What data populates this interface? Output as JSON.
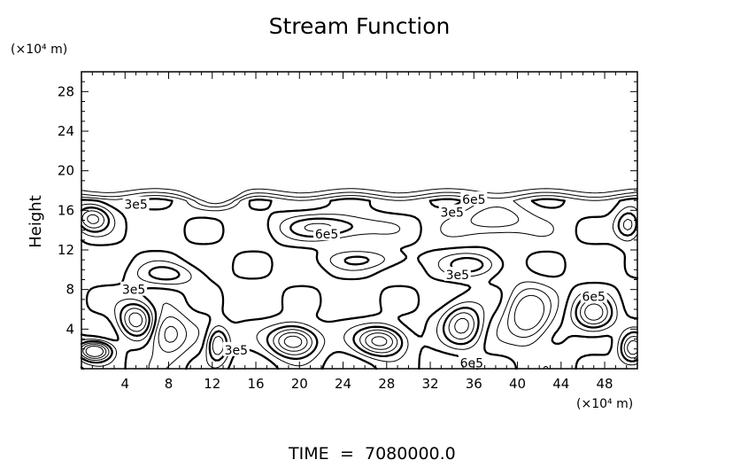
{
  "chart_data": {
    "type": "contour",
    "title": "Stream Function",
    "ylabel": "Height",
    "x_unit": "(×10⁴ m)",
    "y_unit": "(×10⁴ m)",
    "xlim": [
      0,
      51
    ],
    "ylim": [
      0,
      30
    ],
    "x_ticks": [
      4,
      8,
      12,
      16,
      20,
      24,
      28,
      32,
      36,
      40,
      44,
      48
    ],
    "y_ticks": [
      4,
      8,
      12,
      16,
      20,
      24,
      28
    ],
    "grid": false,
    "contour_labels": [
      {
        "text": "3e5",
        "x": 5.0,
        "y": 16.6
      },
      {
        "text": "3e5",
        "x": 4.8,
        "y": 8.0
      },
      {
        "text": "3e5",
        "x": 14.2,
        "y": 1.9
      },
      {
        "text": "6e5",
        "x": 22.5,
        "y": 13.6
      },
      {
        "text": "3e5",
        "x": 34.0,
        "y": 15.8
      },
      {
        "text": "6e5",
        "x": 36.0,
        "y": 17.1
      },
      {
        "text": "3e5",
        "x": 34.5,
        "y": 9.5
      },
      {
        "text": "6e5",
        "x": 47.0,
        "y": 7.3
      },
      {
        "text": "6e5",
        "x": 35.8,
        "y": 0.6
      }
    ],
    "time_label": "TIME",
    "time_value": "7080000.0"
  }
}
